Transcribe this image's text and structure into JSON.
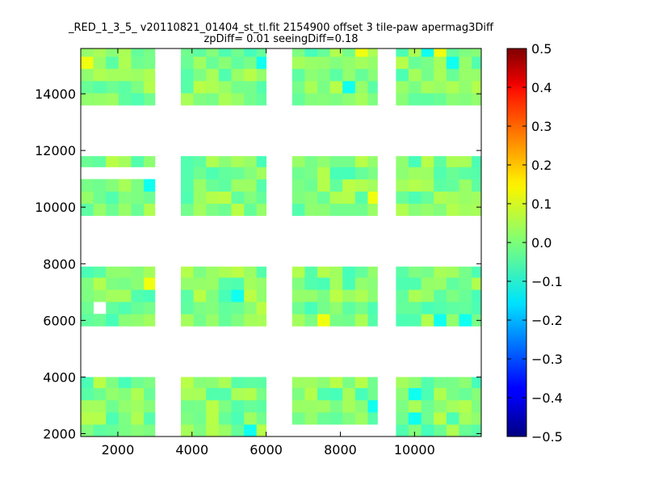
{
  "chart_data": {
    "type": "heatmap",
    "title_lines": [
      "_RED_1_3_5_ v20110821_01404_st_tl.fit 2154900 offset 3 tile-paw apermag3Diff",
      "zpDiff= 0.01 seeingDiff=0.18"
    ],
    "xlim": [
      1000,
      11800
    ],
    "ylim": [
      1900,
      15600
    ],
    "x_ticks": [
      2000,
      4000,
      6000,
      8000,
      10000
    ],
    "y_ticks": [
      2000,
      4000,
      6000,
      8000,
      10000,
      12000,
      14000
    ],
    "colorbar": {
      "colormap": "jet",
      "vmin": -0.5,
      "vmax": 0.5,
      "ticks": [
        "0.5",
        "0.4",
        "0.3",
        "0.2",
        "0.1",
        "0.0",
        "−0.1",
        "−0.2",
        "−0.3",
        "−0.4",
        "−0.5"
      ],
      "tick_values": [
        0.5,
        0.4,
        0.3,
        0.2,
        0.1,
        0.0,
        -0.1,
        -0.2,
        -0.3,
        -0.4,
        -0.5
      ]
    },
    "cell_size": [
      340,
      430
    ],
    "column_groups": [
      {
        "x_start": 1000,
        "x_end": 3000
      },
      {
        "x_start": 3700,
        "x_end": 6000
      },
      {
        "x_start": 6700,
        "x_end": 9000
      },
      {
        "x_start": 9500,
        "x_end": 11800
      }
    ],
    "row_bands": [
      {
        "y_start": 13600,
        "y_end": 15600
      },
      {
        "y_start": 9700,
        "y_end": 11800
      },
      {
        "y_start": 5800,
        "y_end": 7900
      },
      {
        "y_start": 1900,
        "y_end": 4000
      }
    ],
    "value_range": [
      -0.12,
      0.12
    ],
    "typical_value": 0.0
  }
}
